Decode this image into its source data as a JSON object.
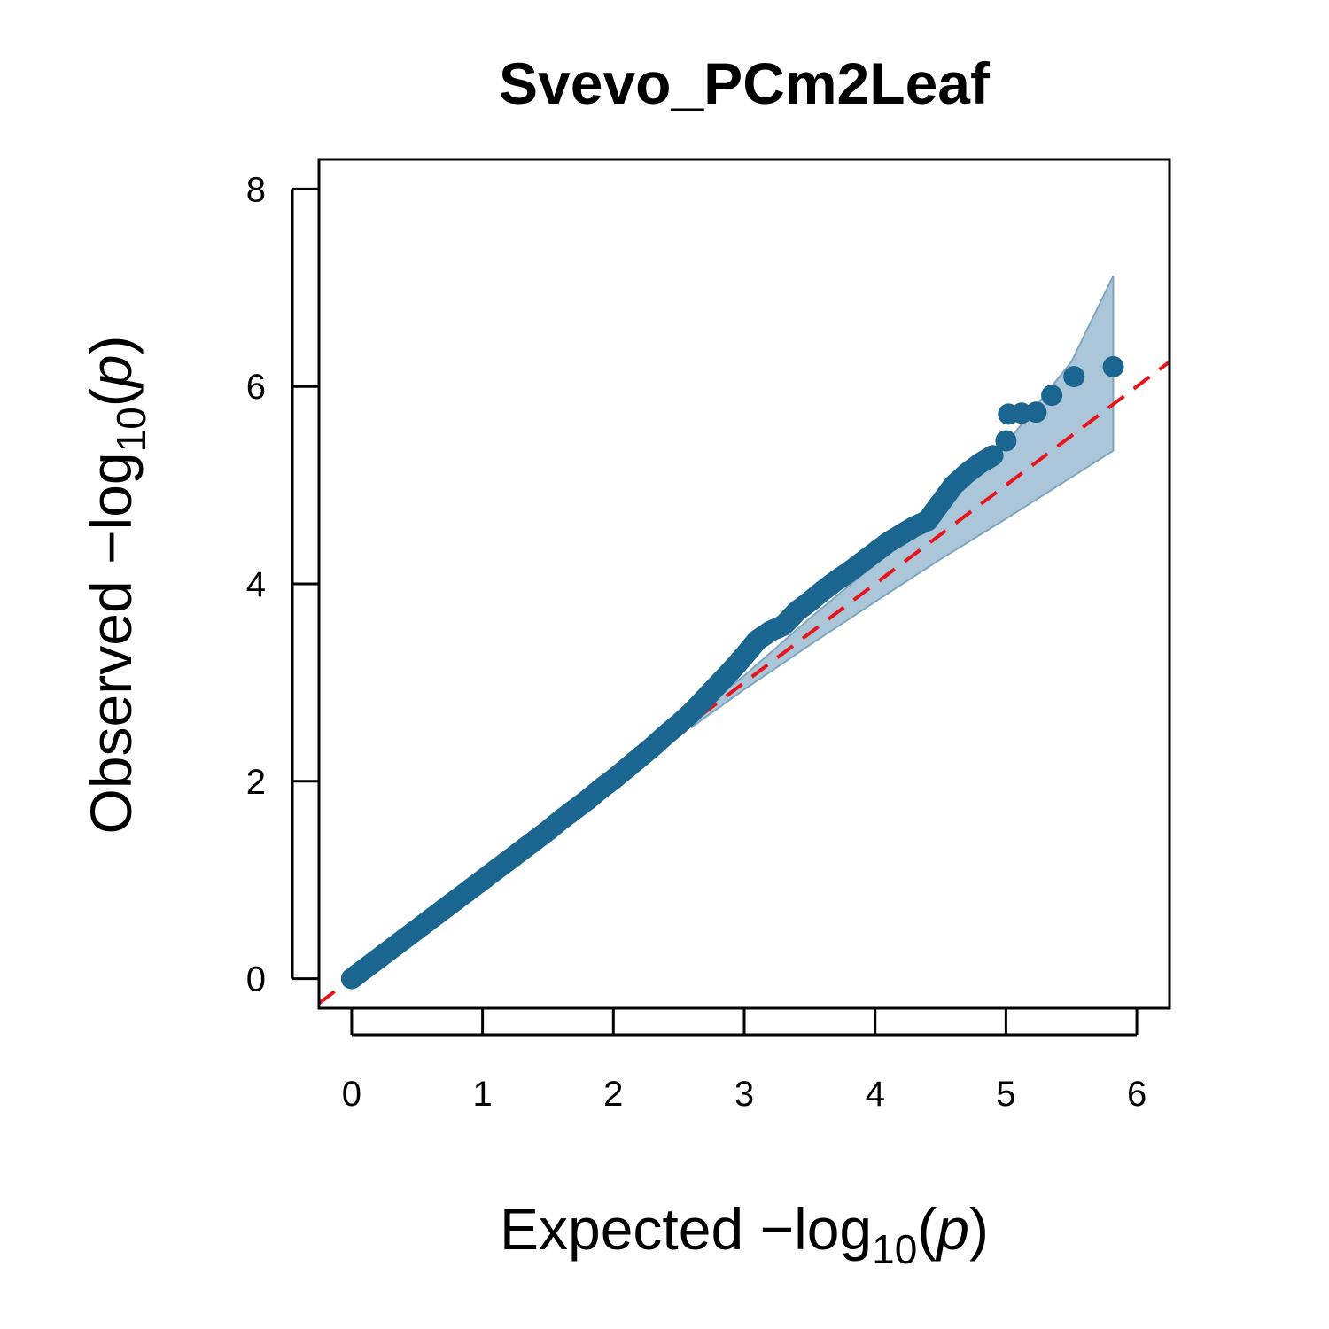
{
  "chart_data": {
    "type": "scatter",
    "title": "Svevo_PCm2Leaf",
    "xlabel": {
      "prefix": "Expected  −log",
      "subscript": "10",
      "open": "(",
      "var": "p",
      "close": ")"
    },
    "ylabel": {
      "prefix": "Observed  −log",
      "subscript": "10",
      "open": "(",
      "var": "p",
      "close": ")"
    },
    "xlim": [
      -0.25,
      6.25
    ],
    "ylim": [
      -0.3,
      8.3
    ],
    "x_ticks": [
      "0",
      "1",
      "2",
      "3",
      "4",
      "5",
      "6"
    ],
    "y_ticks": [
      "0",
      "2",
      "4",
      "6",
      "8"
    ],
    "grid": false,
    "colors": {
      "points": "#1a6690",
      "band_fill": "#a5c3d6",
      "band_edge": "#7fa6c0",
      "reference_line": "#e8141c",
      "axes": "#000000"
    },
    "reference_line": {
      "slope": 1,
      "intercept": 0,
      "style": "dashed"
    },
    "confidence_band": {
      "x": [
        2.6,
        3.0,
        3.5,
        4.0,
        4.5,
        5.0,
        5.5,
        5.82
      ],
      "lower": [
        2.55,
        2.93,
        3.38,
        3.82,
        4.25,
        4.66,
        5.08,
        5.35
      ],
      "upper": [
        2.65,
        3.07,
        3.65,
        4.2,
        4.78,
        5.42,
        6.25,
        7.12
      ]
    },
    "series": [
      {
        "points": [
          [
            0.0,
            0.0
          ],
          [
            0.1,
            0.1
          ],
          [
            0.2,
            0.2
          ],
          [
            0.3,
            0.3
          ],
          [
            0.4,
            0.4
          ],
          [
            0.5,
            0.5
          ],
          [
            0.6,
            0.6
          ],
          [
            0.7,
            0.7
          ],
          [
            0.8,
            0.8
          ],
          [
            0.9,
            0.9
          ],
          [
            1.0,
            1.0
          ],
          [
            1.1,
            1.1
          ],
          [
            1.2,
            1.2
          ],
          [
            1.3,
            1.3
          ],
          [
            1.4,
            1.4
          ],
          [
            1.5,
            1.5
          ],
          [
            1.6,
            1.61
          ],
          [
            1.7,
            1.71
          ],
          [
            1.8,
            1.81
          ],
          [
            1.9,
            1.92
          ],
          [
            2.0,
            2.02
          ],
          [
            2.1,
            2.13
          ],
          [
            2.2,
            2.24
          ],
          [
            2.3,
            2.35
          ],
          [
            2.4,
            2.47
          ],
          [
            2.5,
            2.58
          ],
          [
            2.6,
            2.7
          ],
          [
            2.7,
            2.84
          ],
          [
            2.8,
            2.98
          ],
          [
            2.9,
            3.12
          ],
          [
            3.0,
            3.27
          ],
          [
            3.1,
            3.43
          ],
          [
            3.2,
            3.52
          ],
          [
            3.3,
            3.58
          ],
          [
            3.4,
            3.72
          ],
          [
            3.5,
            3.82
          ],
          [
            3.6,
            3.93
          ],
          [
            3.7,
            4.03
          ],
          [
            3.8,
            4.12
          ],
          [
            3.9,
            4.22
          ],
          [
            4.0,
            4.32
          ],
          [
            4.1,
            4.42
          ],
          [
            4.2,
            4.5
          ],
          [
            4.3,
            4.58
          ],
          [
            4.4,
            4.64
          ],
          [
            4.5,
            4.82
          ],
          [
            4.6,
            5.0
          ],
          [
            4.7,
            5.12
          ],
          [
            4.8,
            5.22
          ],
          [
            4.9,
            5.3
          ],
          [
            5.0,
            5.45
          ],
          [
            5.02,
            5.72
          ],
          [
            5.12,
            5.73
          ],
          [
            5.23,
            5.74
          ],
          [
            5.35,
            5.91
          ],
          [
            5.52,
            6.1
          ],
          [
            5.82,
            6.2
          ]
        ]
      }
    ]
  }
}
